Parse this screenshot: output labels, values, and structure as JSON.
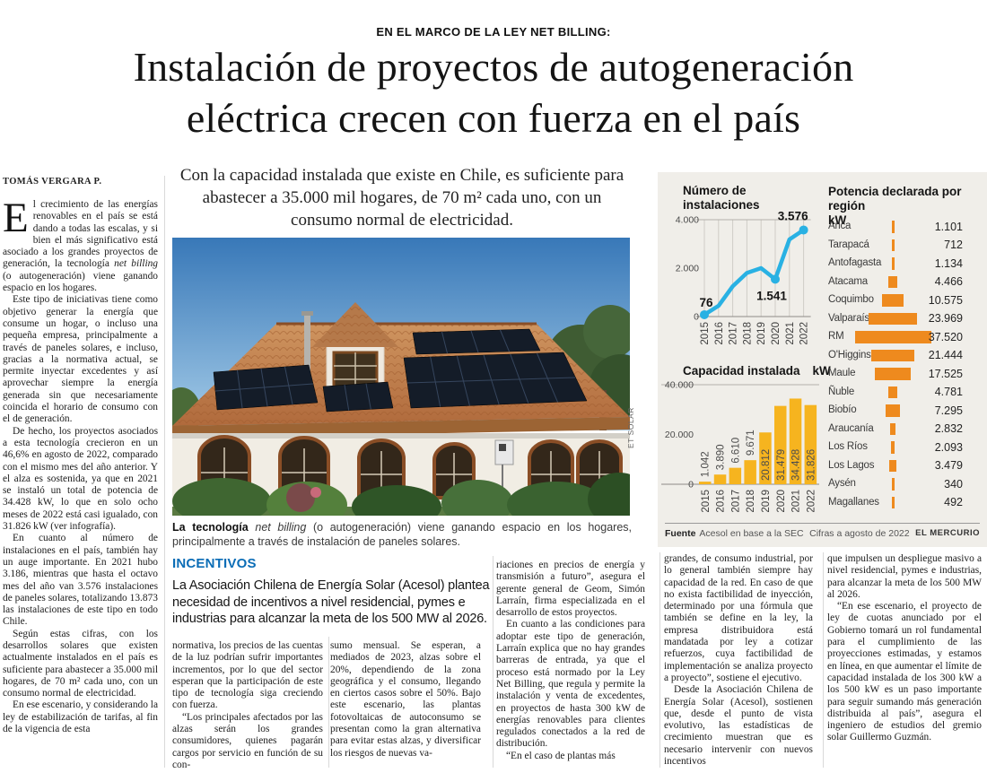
{
  "page": {
    "kicker": "EN EL MARCO DE LA LEY NET BILLING:",
    "headline_lines": [
      "Instalación de proyectos de autogeneración",
      "eléctrica crecen con fuerza en el país"
    ],
    "byline": "TOMÁS VERGARA P.",
    "lead": "Con la capacidad instalada que existe en Chile, es suficiente para abastecer a 35.000 mil hogares, de 70 m² cada uno, con un consumo normal de electricidad."
  },
  "left_column": {
    "dropcap": "E",
    "p1": [
      "l crecimiento de las energías renovables en el país se está dando a todas las escalas, y si bien el más significativo está asociado a los grandes proyectos de generación, la tecnología ",
      "net billing",
      " (o autogeneración) viene ganando espacio en los hogares."
    ],
    "paragraphs": [
      "Este tipo de iniciativas tiene como objetivo generar la energía que consume un hogar, o incluso una pequeña empresa, principalmente a través de paneles solares, e incluso, gracias a la normativa actual, se permite inyectar excedentes y así aprovechar siempre la energía generada sin que necesariamente coincida el horario de consumo con el de generación.",
      "De hecho, los proyectos asociados a esta tecnología crecieron en un 46,6% en agosto de 2022, comparado con el mismo mes del año anterior. Y el alza es sostenida, ya que en 2021 se instaló un total de potencia de 34.428 kW, lo que en solo ocho meses de 2022 está casi igualado, con 31.826 kW (ver infografía).",
      "En cuanto al número de instalaciones en el país, también hay un auge importante. En 2021 hubo 3.186, mientras que hasta el octavo mes del año van 3.576 instalaciones de paneles solares, totalizando 13.873 las instalaciones de este tipo en todo Chile.",
      "Según estas cifras, con los desarrollos solares que existen actualmente instalados en el país es suficiente para abastecer a 35.000 mil hogares, de 70 m² cada uno, con un consumo normal de electricidad.",
      "En ese escenario, y considerando la ley de estabilización de tarifas, al fin de la vigencia de esta"
    ]
  },
  "photo": {
    "credit": "ET SOLAR",
    "caption": {
      "bold": "La tecnología",
      "italic": " net billing",
      "rest": " (o autogeneración) viene ganando espacio en los hogares, principalmente a través de instalación de paneles solares."
    }
  },
  "incentivos": {
    "heading": "INCENTIVOS",
    "deck": "La Asociación Chilena de Energía Solar (Acesol) plantea necesidad de incentivos a nivel residencial, pymes e industrias para alcanzar la meta de los 500 MW al 2026."
  },
  "columns": {
    "col1": [
      "normativa, los precios de las cuentas de la luz podrían sufrir importantes incrementos, por lo que del sector esperan que la participación de este tipo de tecnología siga creciendo con fuerza.",
      "“Los principales afectados por las alzas serán los grandes consumidores, quienes pagarán cargos por servicio en función de su con-"
    ],
    "col2": [
      "sumo mensual. Se esperan, a mediados de 2023, alzas sobre el 20%, dependiendo de la zona geográfica y el consumo, llegando en ciertos casos sobre el 50%. Bajo este escenario, las plantas fotovoltaicas de autoconsumo se presentan como la gran alternativa para evitar estas alzas, y diversificar los riesgos de nuevas va-"
    ],
    "col3": [
      "riaciones en precios de energía y transmisión a futuro”, asegura el gerente general de Geom, Simón Larraín, firma especializada en el desarrollo de estos proyectos.",
      "En cuanto a las condiciones para adoptar este tipo de generación, Larraín explica que no hay grandes barreras de entrada, ya que el proceso está normado por la Ley Net Billing, que regula y permite la instalación y venta de excedentes, en proyectos de hasta 300 kW de energías renovables para clientes regulados conectados a la red de distribución.",
      "“En el caso de plantas más"
    ],
    "col4": [
      "grandes, de consumo industrial, por lo general también siempre hay capacidad de la red. En caso de que no exista factibilidad de inyección, determinado por una fórmula que también se define en la ley, la empresa distribuidora está mandatada por ley a cotizar refuerzos, cuya factibilidad de implementación se analiza proyecto a proyecto”, sostiene el ejecutivo.",
      "Desde la Asociación Chilena de Energía Solar (Acesol), sostienen que, desde el punto de vista evolutivo, las estadísticas de crecimiento muestran que es necesario intervenir con nuevos incentivos"
    ],
    "col5": [
      "que impulsen un despliegue masivo a nivel residencial, pymes e industrias, para alcanzar la meta de los 500 MW al 2026.",
      "“En ese escenario, el proyecto de ley de cuotas anunciado por el Gobierno tomará un rol fundamental para el cumplimiento de las proyecciones estimadas, y estamos en línea, en que aumentar el límite de capacidad instalada de los 300 kW a los 500 kW es un paso importante para seguir sumando más generación distribuida al país”, asegura el ingeniero de estudios del gremio solar Guillermo Guzmán."
    ]
  },
  "infographic": {
    "fuente_label": "Fuente",
    "fuente": "Acesol en base a la SEC",
    "cifras": "Cifras a agosto de 2022",
    "brand": "EL MERCURIO",
    "panel_bg": "#f0eee9"
  },
  "chart_data": [
    {
      "type": "line",
      "title": "Número de instalaciones",
      "x": [
        "2015",
        "2016",
        "2017",
        "2018",
        "2019",
        "2020",
        "2021",
        "2022"
      ],
      "values": [
        76,
        444,
        1250,
        1800,
        2000,
        1541,
        3186,
        3576
      ],
      "ylim": [
        0,
        4000
      ],
      "yticks": [
        "0",
        "2.000",
        "4.000"
      ],
      "dot_indices": [
        0,
        5,
        7
      ],
      "point_labels": [
        {
          "i": 0,
          "text": "76"
        },
        {
          "i": 5,
          "text": "1.541"
        },
        {
          "i": 7,
          "text": "3.576"
        }
      ],
      "line_color": "#29b1e3"
    },
    {
      "type": "bar",
      "title": "Capacidad instalada",
      "unit": "kW",
      "categories": [
        "2015",
        "2016",
        "2017",
        "2018",
        "2019",
        "2020",
        "2021",
        "2022"
      ],
      "values": [
        1042,
        3890,
        6610,
        9671,
        20812,
        31479,
        34428,
        31826
      ],
      "value_labels": [
        "1.042",
        "3.890",
        "6.610",
        "9.671",
        "20.812",
        "31.479",
        "34.428",
        "31.826"
      ],
      "ylim": [
        0,
        40000
      ],
      "yticks": [
        "0",
        "20.000",
        "40.000"
      ],
      "bar_color": "#f6b41f"
    },
    {
      "type": "bar-horizontal-centered",
      "title": "Potencia declarada por región",
      "unit": "kW",
      "categories": [
        "Arica",
        "Tarapacá",
        "Antofagasta",
        "Atacama",
        "Coquimbo",
        "Valparaíso",
        "RM",
        "O'Higgins",
        "Maule",
        "Ñuble",
        "Biobío",
        "Araucanía",
        "Los Ríos",
        "Los Lagos",
        "Aysén",
        "Magallanes"
      ],
      "values": [
        1101,
        712,
        1134,
        4466,
        10575,
        23969,
        37520,
        21444,
        17525,
        4781,
        7295,
        2832,
        2093,
        3479,
        340,
        492
      ],
      "value_labels": [
        "1.101",
        "712",
        "1.134",
        "4.466",
        "10.575",
        "23.969",
        "37.520",
        "21.444",
        "17.525",
        "4.781",
        "7.295",
        "2.832",
        "2.093",
        "3.479",
        "340",
        "492"
      ],
      "max": 37520,
      "bar_color": "#ee8a1e"
    }
  ]
}
